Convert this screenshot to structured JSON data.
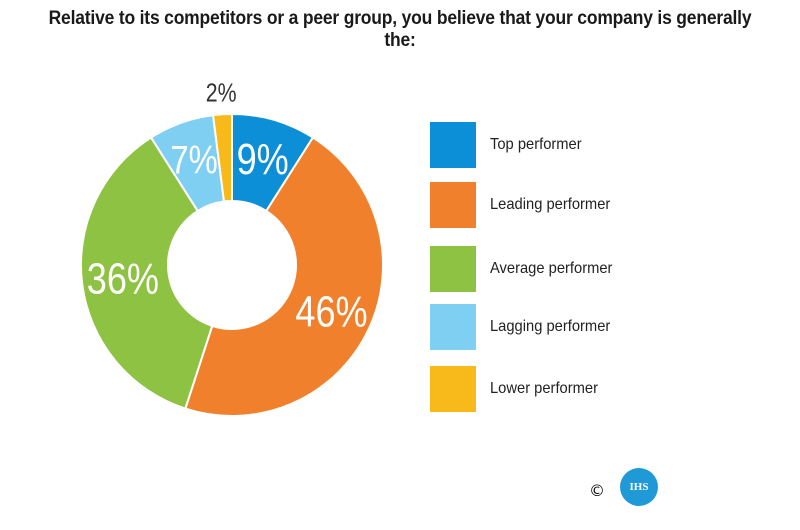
{
  "chart_data": {
    "type": "pie",
    "title": "Relative to its competitors or a peer group, you believe that your company is generally the:",
    "categories": [
      "Top performer",
      "Leading performer",
      "Average performer",
      "Lagging performer",
      "Lower performer"
    ],
    "values": [
      9,
      46,
      36,
      7,
      2
    ],
    "value_labels": [
      "9%",
      "46%",
      "36%",
      "7%",
      "2%"
    ],
    "colors": [
      "#0d8fd8",
      "#f0802c",
      "#8dc242",
      "#7fcff2",
      "#f8b91b"
    ],
    "donut": true,
    "legend_position": "right"
  },
  "footer": {
    "copyright": "©",
    "logo_text": "IHS"
  }
}
